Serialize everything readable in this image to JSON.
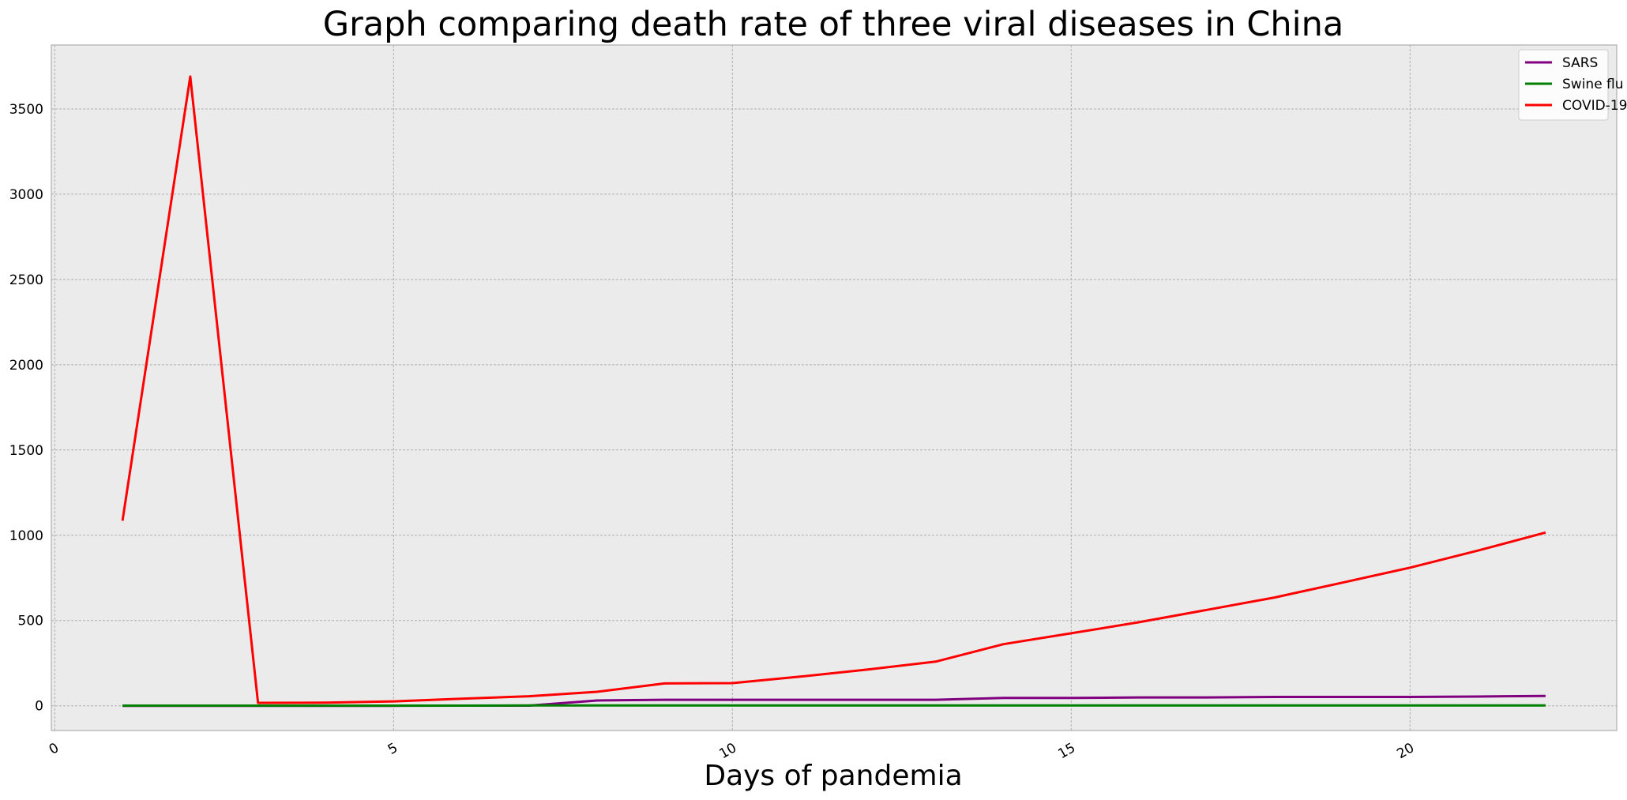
{
  "chart_data": {
    "type": "line",
    "title": "Graph comparing death rate of three viral diseases in China",
    "xlabel": "Days of pandemia",
    "ylabel": "",
    "xlim": [
      -0.05,
      23.05
    ],
    "ylim": [
      -145,
      3875
    ],
    "x_ticks": [
      0,
      5,
      10,
      15,
      20
    ],
    "y_ticks": [
      0,
      500,
      1000,
      1500,
      2000,
      2500,
      3000,
      3500
    ],
    "grid": true,
    "legend_position": "top-right",
    "x": [
      1,
      2,
      3,
      4,
      5,
      6,
      7,
      8,
      9,
      10,
      11,
      12,
      13,
      14,
      15,
      16,
      17,
      18,
      19,
      20,
      21,
      22
    ],
    "series": [
      {
        "name": "SARS",
        "color": "#800080",
        "values": [
          0,
          0,
          0,
          0,
          0,
          1,
          1,
          31,
          35,
          35,
          35,
          35,
          35,
          46,
          46,
          49,
          49,
          52,
          52,
          52,
          54,
          58
        ]
      },
      {
        "name": "Swine flu",
        "color": "#008000",
        "values": [
          1,
          1,
          1,
          1,
          1,
          1,
          2,
          2,
          2,
          2,
          2,
          2,
          2,
          2,
          2,
          2,
          2,
          2,
          2,
          2,
          2,
          2
        ]
      },
      {
        "name": "COVID-19",
        "color": "#ff0000",
        "values": [
          1085,
          3690,
          17,
          18,
          26,
          41,
          56,
          82,
          131,
          133,
          171,
          213,
          259,
          361,
          425,
          490,
          562,
          635,
          722,
          810,
          910,
          1016
        ]
      }
    ]
  }
}
